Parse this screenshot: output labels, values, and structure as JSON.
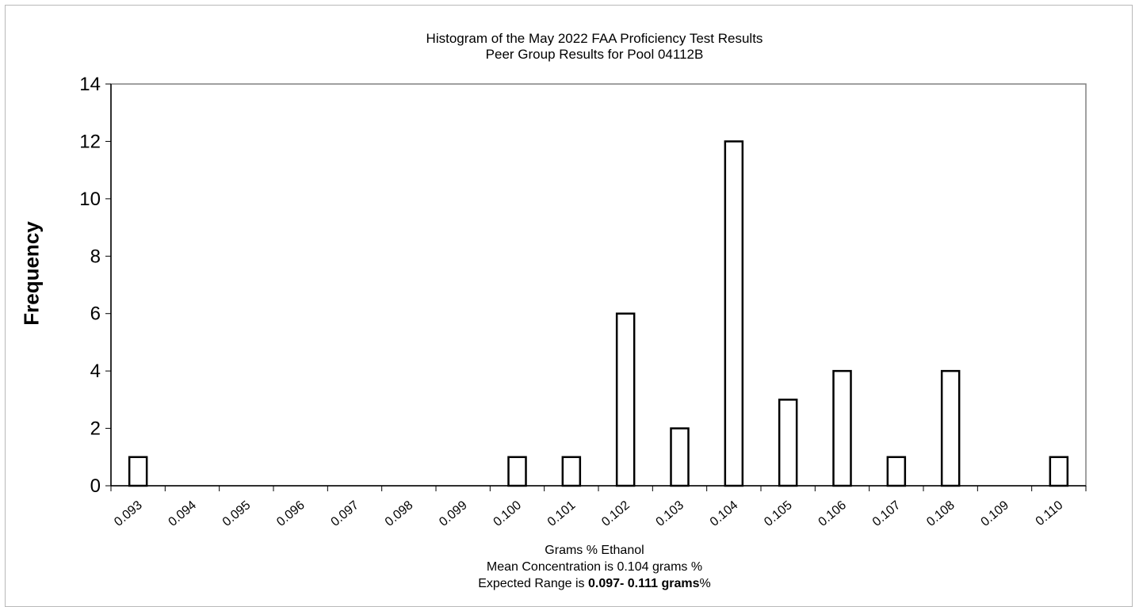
{
  "chart_data": {
    "type": "bar",
    "title": "Histogram of the May 2022 FAA Proficiency Test  Results",
    "subtitle": "Peer Group Results for Pool  04112B",
    "xlabel": "Grams % Ethanol",
    "ylabel": "Frequency",
    "categories": [
      "0.093",
      "0.094",
      "0.095",
      "0.096",
      "0.097",
      "0.098",
      "0.099",
      "0.100",
      "0.101",
      "0.102",
      "0.103",
      "0.104",
      "0.105",
      "0.106",
      "0.107",
      "0.108",
      "0.109",
      "0.110"
    ],
    "values": [
      1,
      0,
      0,
      0,
      0,
      0,
      0,
      1,
      1,
      6,
      2,
      12,
      3,
      4,
      1,
      4,
      0,
      1
    ],
    "ylim": [
      0,
      14
    ],
    "yticks": [
      0,
      2,
      4,
      6,
      8,
      10,
      12,
      14
    ],
    "grid": false,
    "bar_fill": "#ffffff",
    "bar_stroke": "#000000",
    "mean_line": {
      "prefix": "Mean Concentration is",
      "value": "0.104",
      "unit": "grams %"
    },
    "range_line": {
      "prefix": "Expected Range is",
      "range": "0.097- 0.111",
      "unit_bold": "grams",
      "suffix": "%"
    }
  }
}
